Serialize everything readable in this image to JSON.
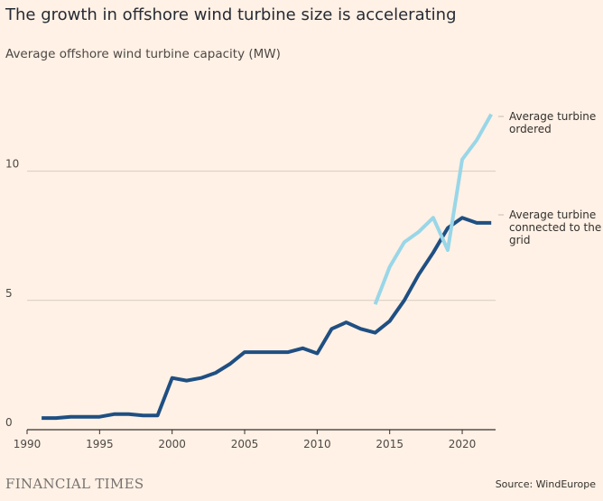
{
  "header": {
    "title": "The growth in offshore wind turbine size is accelerating",
    "subtitle": "Average offshore wind turbine capacity (MW)"
  },
  "footer": {
    "brand": "FINANCIAL TIMES",
    "source": "Source: WindEurope"
  },
  "colors": {
    "background": "#fff1e5",
    "grid": "#d8cbbf",
    "connected": "#1f4f82",
    "ordered": "#99d6e8"
  },
  "chart_data": {
    "type": "line",
    "title": "The growth in offshore wind turbine size is accelerating",
    "ylabel": "Average offshore wind turbine capacity (MW)",
    "xlabel": "",
    "xlim": [
      1990,
      2022.3
    ],
    "ylim": [
      0,
      12.5
    ],
    "x_ticks": [
      1990,
      1995,
      2000,
      2005,
      2010,
      2015,
      2020
    ],
    "y_ticks": [
      0,
      5,
      10
    ],
    "grid": true,
    "series": [
      {
        "name": "Average turbine connected to the grid",
        "label_lines": [
          "Average turbine",
          "connected to the",
          "grid"
        ],
        "color": "#1f4f82",
        "x": [
          1991,
          1992,
          1993,
          1994,
          1995,
          1996,
          1997,
          1998,
          1999,
          2000,
          2001,
          2002,
          2003,
          2004,
          2005,
          2006,
          2007,
          2008,
          2009,
          2010,
          2011,
          2012,
          2013,
          2014,
          2015,
          2016,
          2017,
          2018,
          2019,
          2020,
          2021,
          2022
        ],
        "y": [
          0.45,
          0.45,
          0.5,
          0.5,
          0.5,
          0.6,
          0.6,
          0.55,
          0.55,
          2.0,
          1.9,
          2.0,
          2.2,
          2.55,
          3.0,
          3.0,
          3.0,
          3.0,
          3.15,
          2.95,
          3.9,
          4.15,
          3.9,
          3.75,
          4.2,
          5.0,
          6.0,
          6.85,
          7.8,
          8.2,
          8.0,
          8.0
        ]
      },
      {
        "name": "Average turbine ordered",
        "label_lines": [
          "Average turbine",
          "ordered"
        ],
        "color": "#99d6e8",
        "x": [
          2014,
          2015,
          2016,
          2017,
          2018,
          2019,
          2020,
          2021,
          2022
        ],
        "y": [
          4.85,
          6.3,
          7.25,
          7.65,
          8.2,
          6.95,
          10.45,
          11.2,
          12.2
        ]
      }
    ]
  }
}
